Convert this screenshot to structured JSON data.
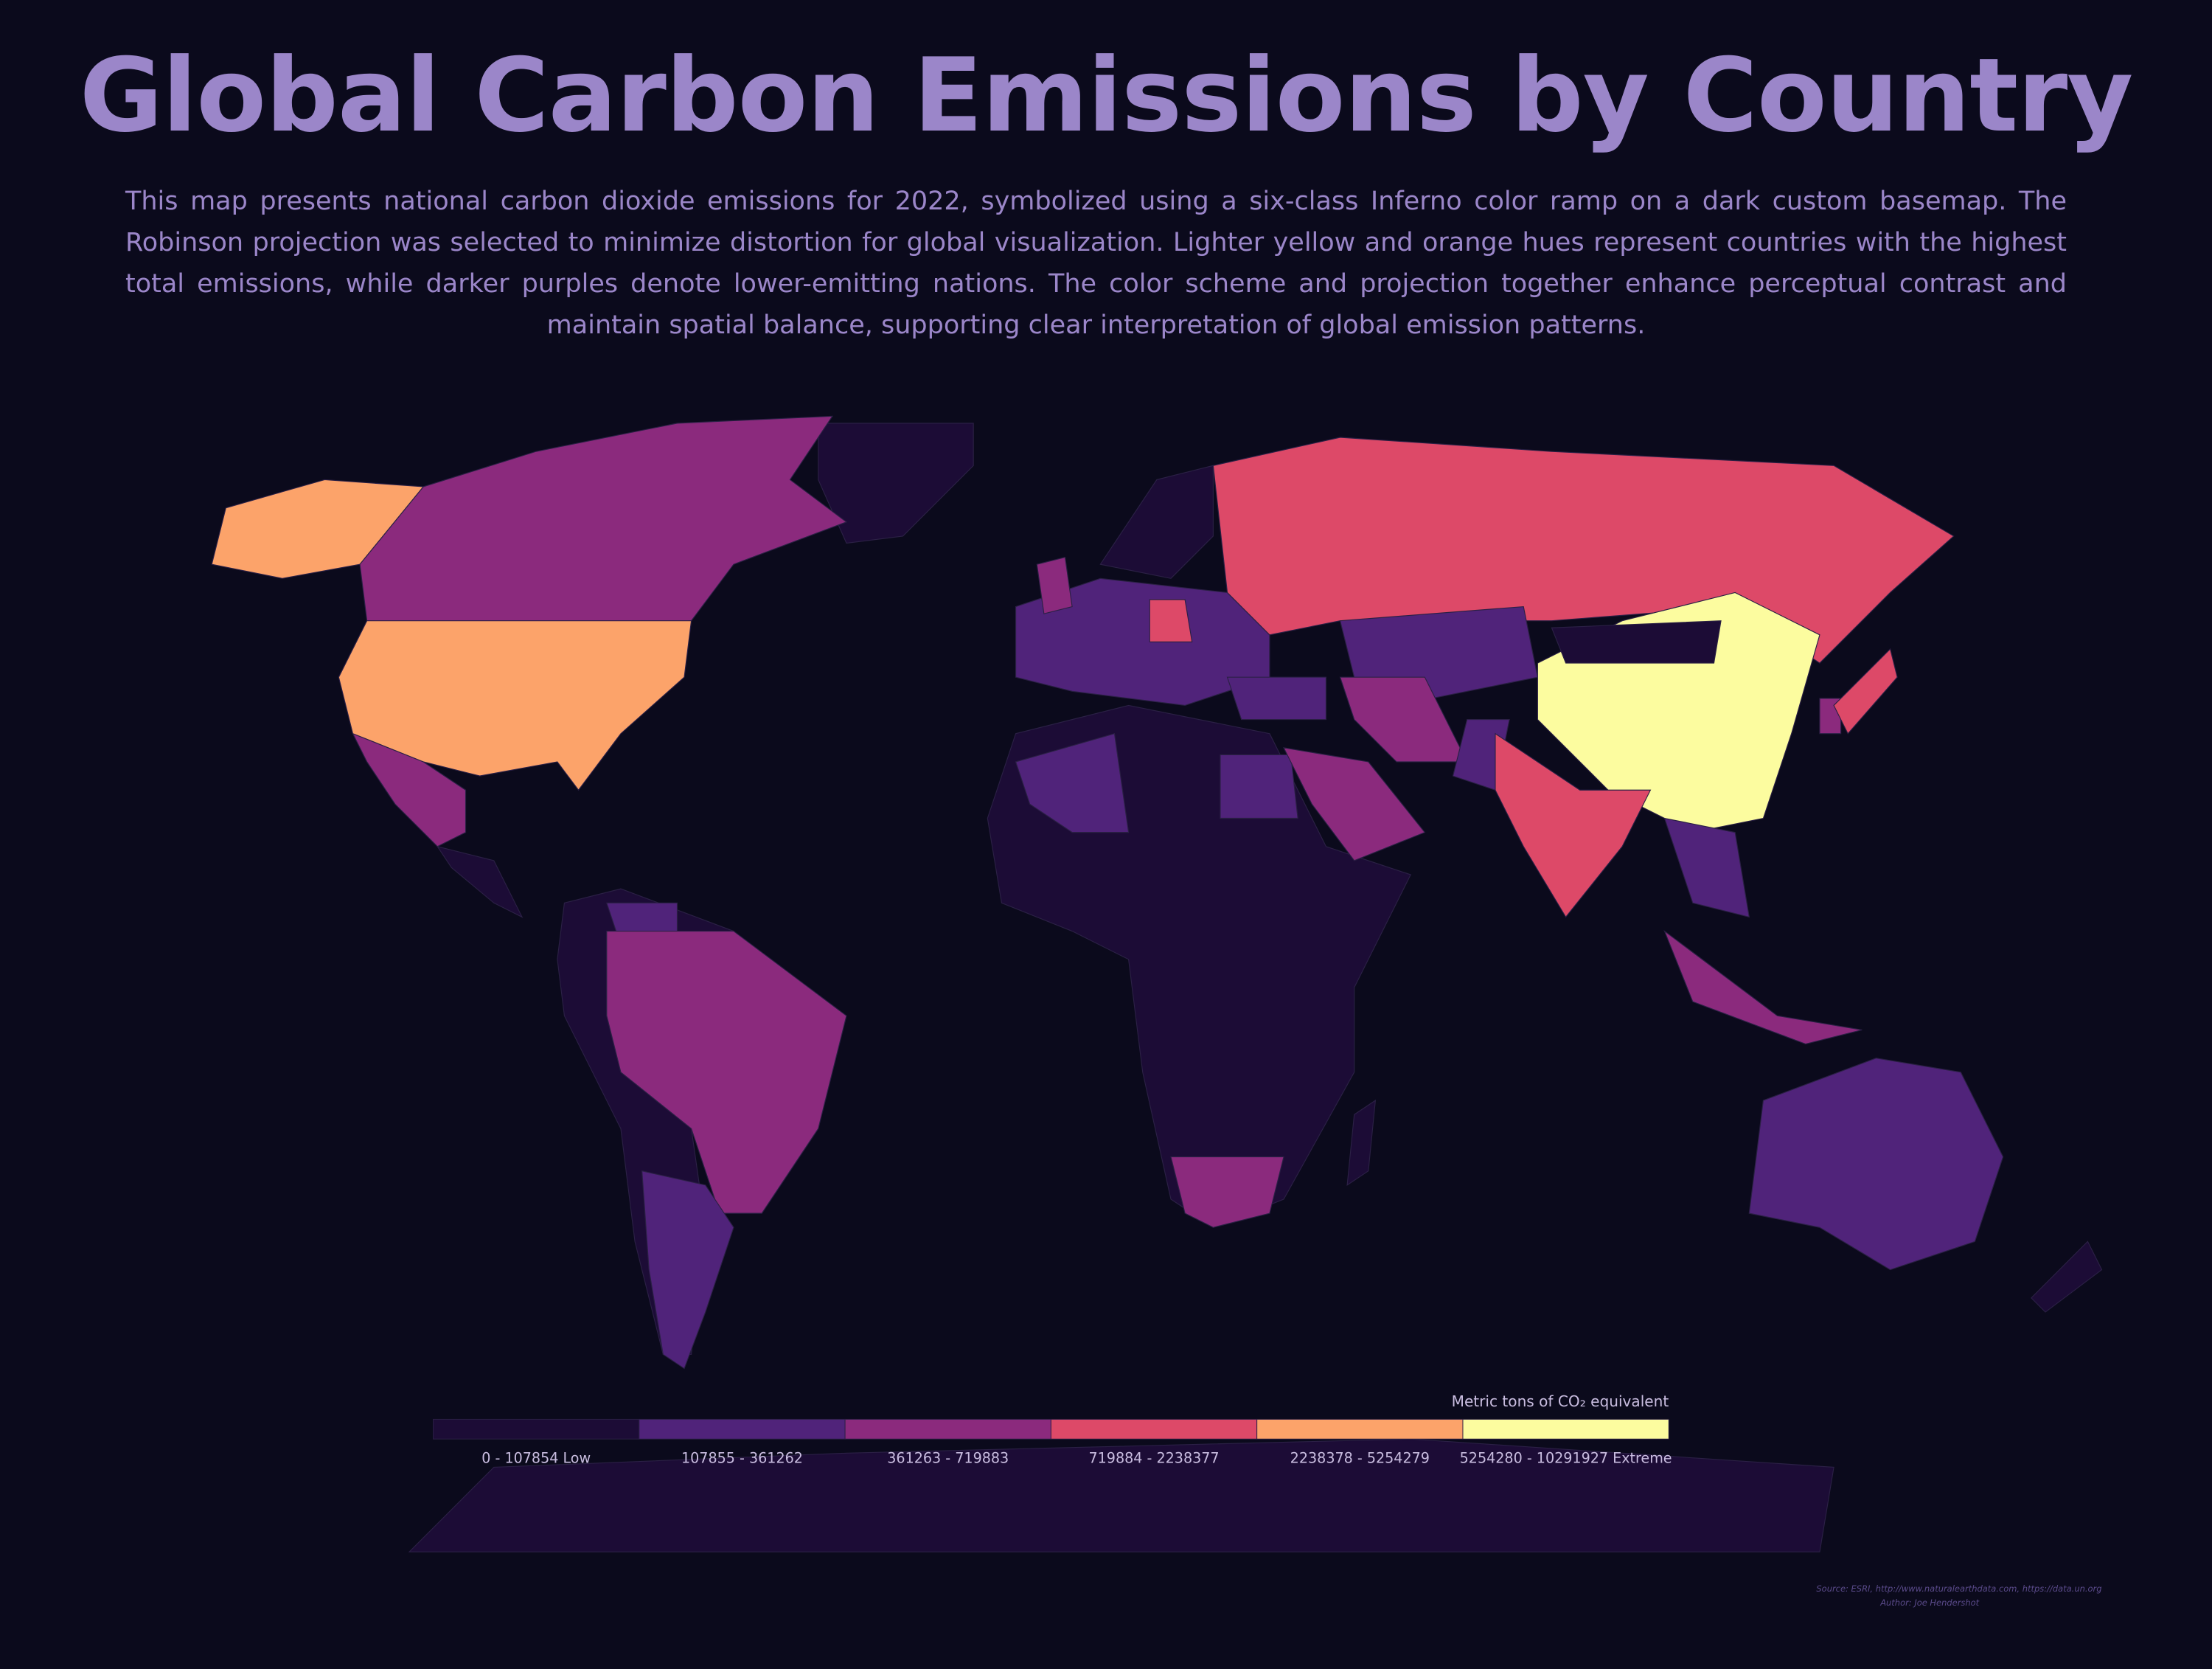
{
  "header": {
    "title": "Global Carbon Emissions by Country",
    "description": "This map presents national carbon dioxide emissions for 2022, symbolized using a six-class Inferno color ramp on a dark custom basemap. The Robinson projection was selected to minimize distortion for global visualization. Lighter yellow and orange hues represent countries with the highest total emissions, while darker purples denote lower-emitting nations. The color scheme and projection together enhance perceptual contrast and maintain spatial balance, supporting clear interpretation of global emission patterns."
  },
  "legend": {
    "title": "Metric tons of CO₂ equivalent",
    "classes": [
      {
        "label": "0 - 107854 Low",
        "color": "#1c0c36"
      },
      {
        "label": "107855 - 361262",
        "color": "#50237a"
      },
      {
        "label": "361263 - 719883",
        "color": "#8b2a7d"
      },
      {
        "label": "719884 - 2238377",
        "color": "#dd4968"
      },
      {
        "label": "2238378 - 5254279",
        "color": "#fca36a"
      },
      {
        "label": "5254280 - 10291927 Extreme",
        "color": "#fcfc9f"
      }
    ]
  },
  "credits": {
    "source": "Source: ESRI, http://www.naturalearthdata.com, https://data.un.org",
    "author": "Author: Joe Hendershot"
  }
}
